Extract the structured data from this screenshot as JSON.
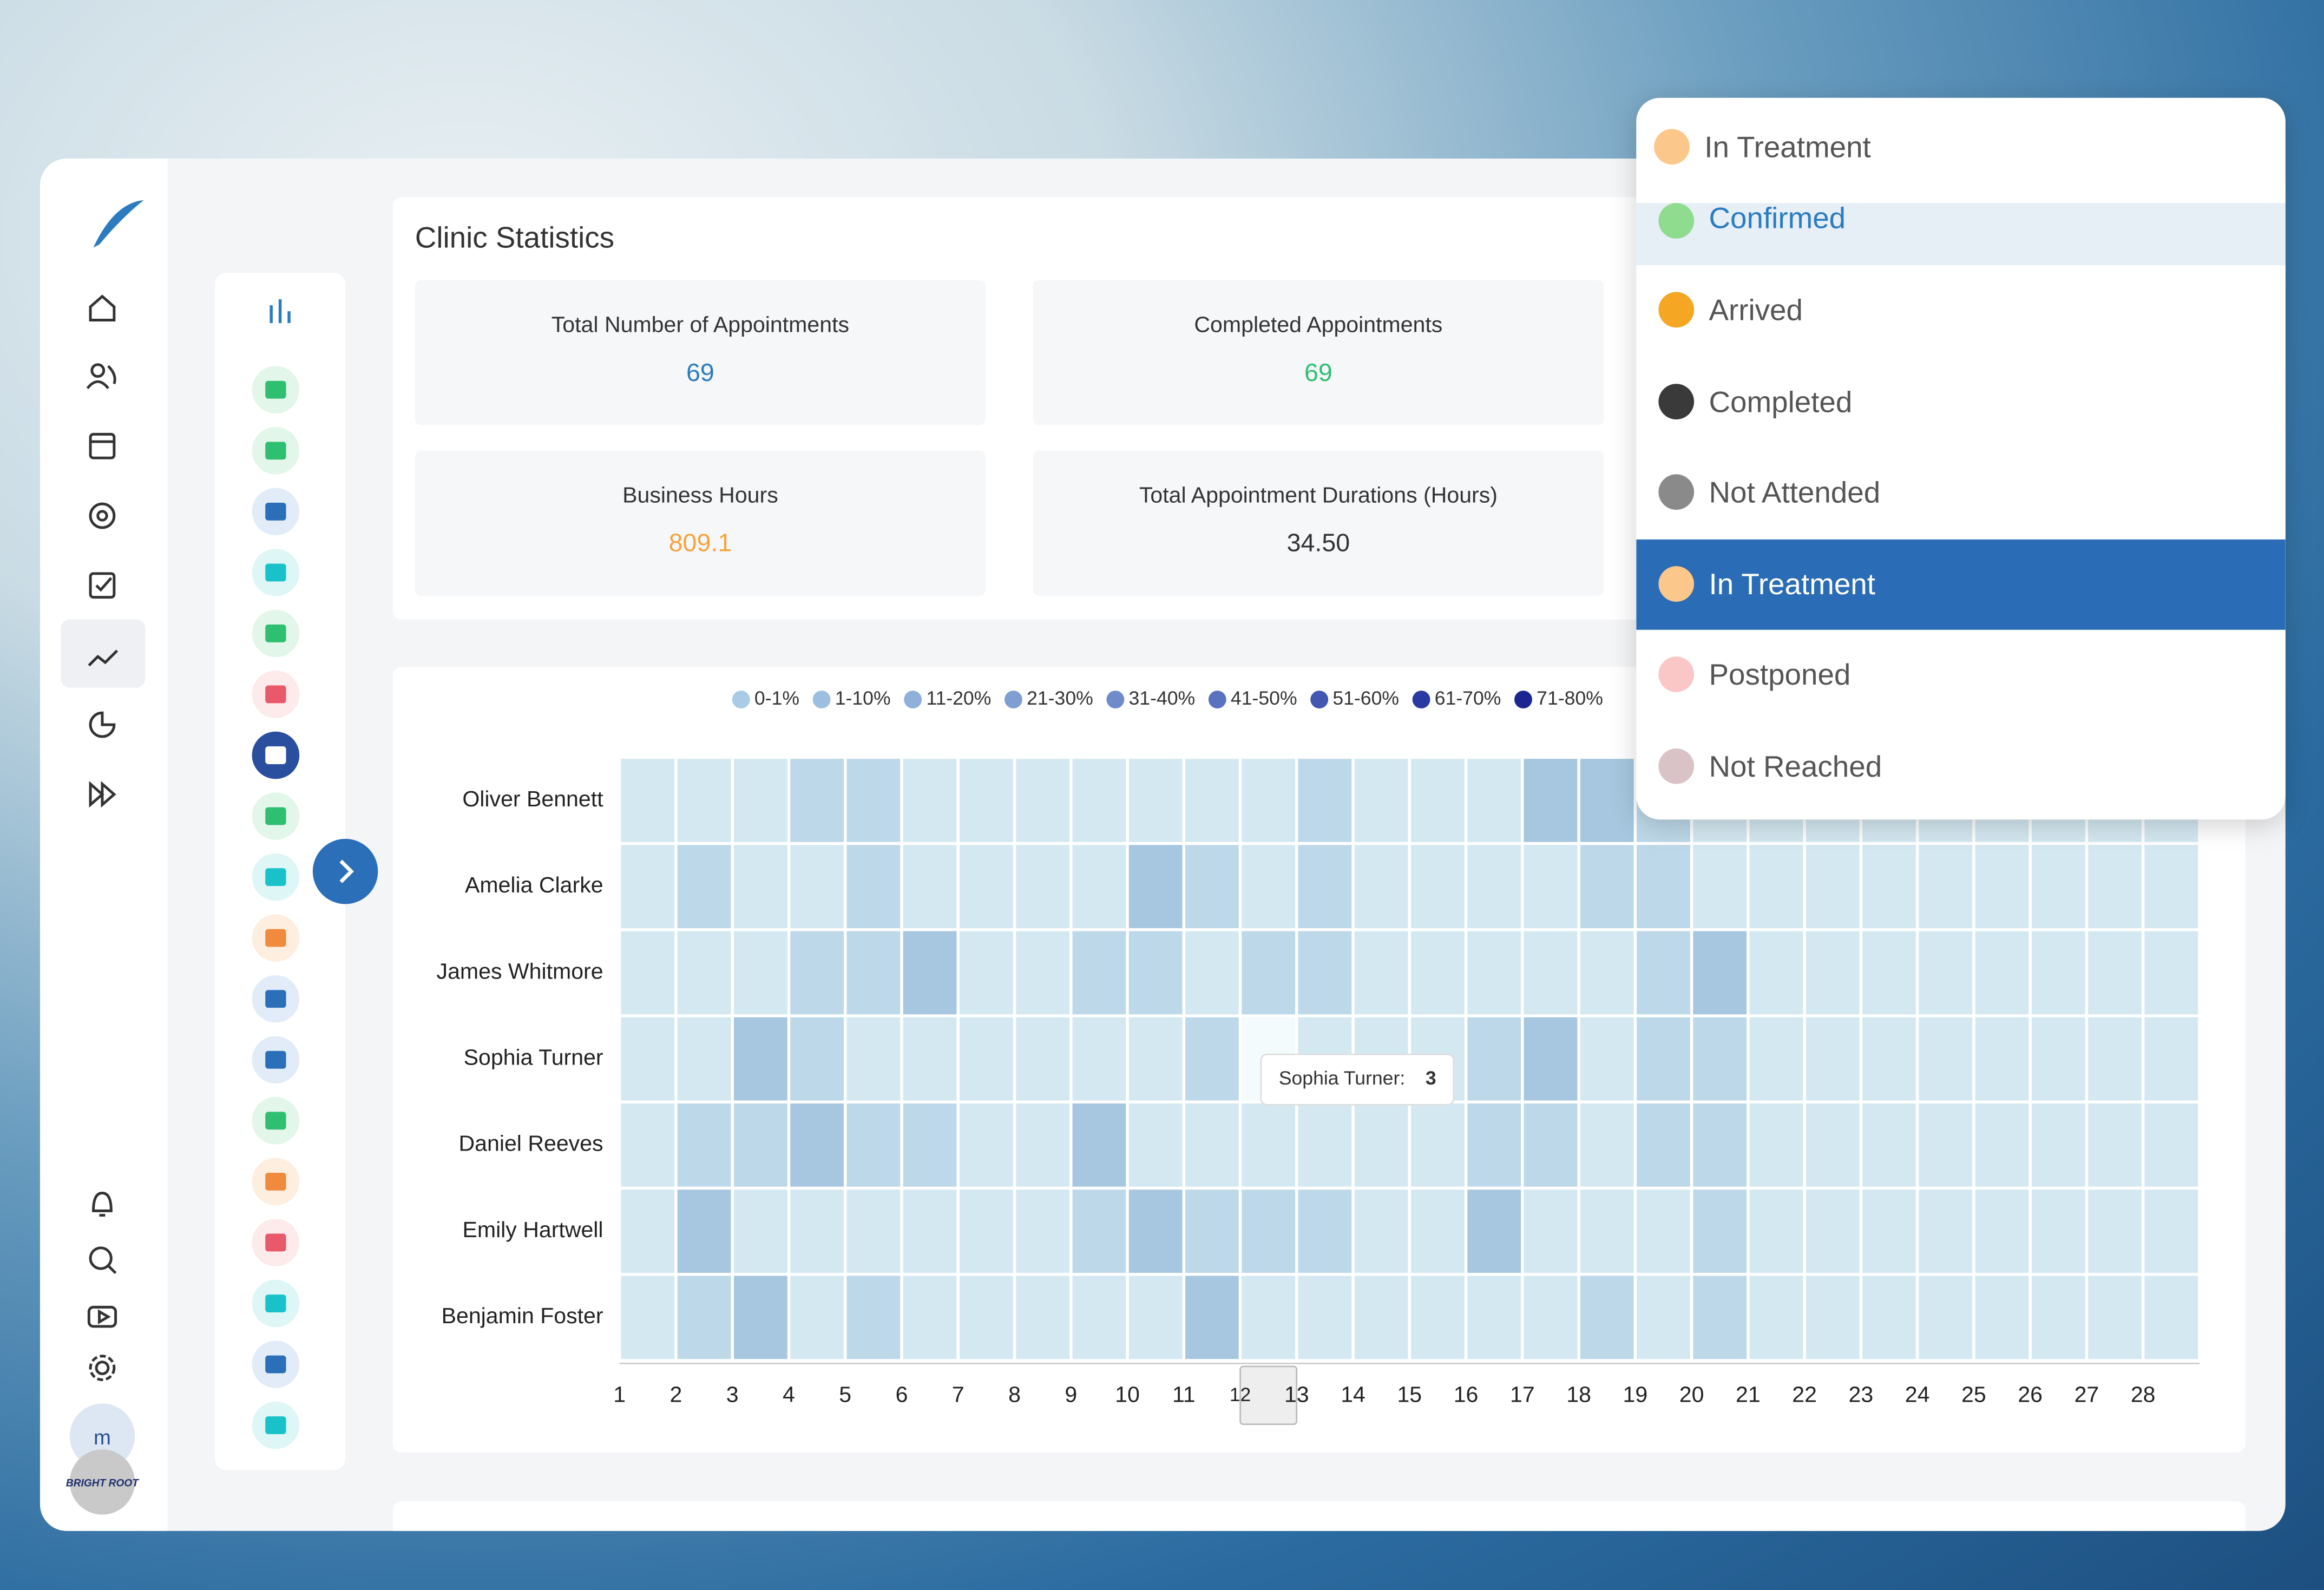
{
  "stats": {
    "title": "Clinic Statistics",
    "cards": [
      {
        "label": "Total Number of Appointments",
        "value": "69",
        "color": "#2a7bc0"
      },
      {
        "label": "Completed Appointments",
        "value": "69",
        "color": "#2fbf71"
      },
      {
        "label": "Business Hours",
        "value": "809.1",
        "color": "#f5a33b"
      },
      {
        "label": "Total Appointment Durations (Hours)",
        "value": "34.50",
        "color": "#333333"
      }
    ]
  },
  "heatmap": {
    "legend": [
      {
        "label": "0-1%",
        "color": "#a9cbe6"
      },
      {
        "label": "1-10%",
        "color": "#9cbfe0"
      },
      {
        "label": "11-20%",
        "color": "#8eb0da"
      },
      {
        "label": "21-30%",
        "color": "#7f9fd2"
      },
      {
        "label": "31-40%",
        "color": "#6f8bca"
      },
      {
        "label": "41-50%",
        "color": "#5a72bf"
      },
      {
        "label": "51-60%",
        "color": "#4256b2"
      },
      {
        "label": "61-70%",
        "color": "#2a3aa3"
      },
      {
        "label": "71-80%",
        "color": "#1c2690"
      }
    ],
    "rows": [
      "Oliver Bennett",
      "Amelia Clarke",
      "James Whitmore",
      "Sophia Turner",
      "Daniel Reeves",
      "Emily Hartwell",
      "Benjamin Foster"
    ],
    "columns": [
      1,
      2,
      3,
      4,
      5,
      6,
      7,
      8,
      9,
      10,
      11,
      12,
      13,
      14,
      15,
      16,
      17,
      18,
      19,
      20,
      21,
      22,
      23,
      24,
      25,
      26,
      27,
      28
    ],
    "values": [
      [
        1,
        1,
        1,
        2,
        2,
        1,
        1,
        1,
        1,
        1,
        1,
        1,
        2,
        1,
        1,
        1,
        3,
        3,
        2,
        1,
        1,
        1,
        1,
        1,
        1,
        1,
        1,
        1
      ],
      [
        1,
        2,
        1,
        1,
        2,
        1,
        1,
        1,
        1,
        3,
        2,
        1,
        2,
        1,
        1,
        1,
        1,
        2,
        2,
        1,
        1,
        1,
        1,
        1,
        1,
        1,
        1,
        1
      ],
      [
        1,
        1,
        1,
        2,
        2,
        3,
        1,
        1,
        2,
        2,
        1,
        2,
        2,
        1,
        1,
        1,
        1,
        1,
        2,
        3,
        1,
        1,
        1,
        1,
        1,
        1,
        1,
        1
      ],
      [
        1,
        1,
        3,
        2,
        1,
        1,
        1,
        1,
        1,
        1,
        2,
        3,
        1,
        1,
        1,
        2,
        3,
        1,
        2,
        2,
        1,
        1,
        1,
        1,
        1,
        1,
        1,
        1
      ],
      [
        1,
        2,
        2,
        3,
        2,
        2,
        1,
        1,
        3,
        1,
        1,
        1,
        1,
        1,
        1,
        2,
        2,
        1,
        2,
        2,
        1,
        1,
        1,
        1,
        1,
        1,
        1,
        1
      ],
      [
        1,
        3,
        1,
        1,
        1,
        1,
        1,
        1,
        2,
        3,
        2,
        2,
        2,
        1,
        1,
        3,
        1,
        1,
        1,
        2,
        1,
        1,
        1,
        1,
        1,
        1,
        1,
        1
      ],
      [
        1,
        2,
        3,
        1,
        2,
        1,
        1,
        1,
        1,
        1,
        3,
        1,
        1,
        1,
        1,
        1,
        1,
        2,
        1,
        2,
        1,
        1,
        1,
        1,
        1,
        1,
        1,
        1
      ]
    ],
    "cell_colors": [
      "#d4e8f1",
      "#a6c7df"
    ],
    "hover": {
      "row": 3,
      "column": 11,
      "label": "Sophia Turner:"
    }
  },
  "dropdown": {
    "selected": {
      "label": "In Treatment",
      "color": "#fcc78a"
    },
    "options": [
      {
        "label": "Confirmed",
        "color": "#8fdc8f"
      },
      {
        "label": "Arrived",
        "color": "#f5a623"
      },
      {
        "label": "Completed",
        "color": "#3a3a3a"
      },
      {
        "label": "Not Attended",
        "color": "#8a8a8a"
      },
      {
        "label": "In Treatment",
        "color": "#fcc78a"
      },
      {
        "label": "Postponed",
        "color": "#fbc6c6"
      },
      {
        "label": "Not Reached",
        "color": "#d9c3c6"
      }
    ],
    "hovered": 0,
    "active": 4
  },
  "user": {
    "initial": "m",
    "brand": "BRIGHT ROOT"
  }
}
